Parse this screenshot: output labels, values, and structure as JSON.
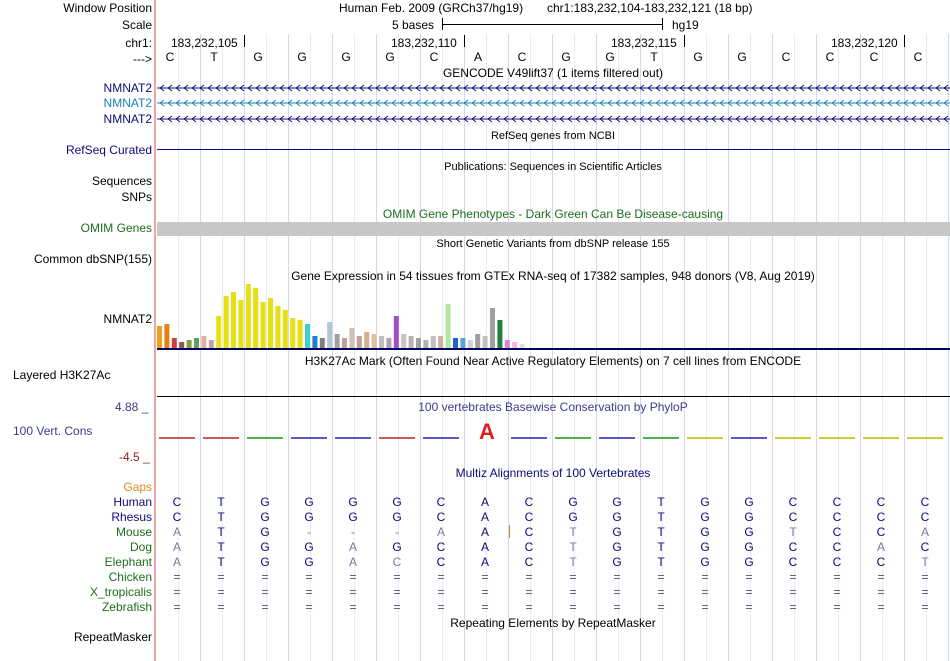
{
  "header": {
    "window_position_label": "Window Position",
    "scale_label": "Scale",
    "chrom_label": "chr1:",
    "strand_label": "--->",
    "assembly_text": "Human Feb. 2009 (GRCh37/hg19)",
    "position_text": "chr1:183,232,104-183,232,121 (18 bp)",
    "scale_text": "5 bases",
    "db_text": "hg19",
    "coords": [
      "183,232,105",
      "183,232,110",
      "183,232,115",
      "183,232,120"
    ],
    "bases": [
      "C",
      "T",
      "G",
      "G",
      "G",
      "G",
      "C",
      "A",
      "C",
      "G",
      "G",
      "T",
      "G",
      "G",
      "C",
      "C",
      "C",
      "C"
    ]
  },
  "gencode": {
    "title": "GENCODE V49lift37 (1 items filtered out)",
    "labels": [
      "NMNAT2",
      "NMNAT2",
      "NMNAT2"
    ],
    "colors": [
      "#0c0c78",
      "#1a82b4",
      "#0c0c78"
    ]
  },
  "refseq": {
    "title": "RefSeq genes from NCBI",
    "label": "RefSeq Curated",
    "color": "#0c0c78"
  },
  "publications": {
    "title": "Publications: Sequences in Scientific Articles",
    "label": "Sequences"
  },
  "snps": {
    "label": "SNPs"
  },
  "omim": {
    "title": "OMIM Gene Phenotypes - Dark Green Can Be Disease-causing",
    "label": "OMIM Genes",
    "color": "#1e6e1e"
  },
  "dbsnp": {
    "title": "Short Genetic Variants from dbSNP release 155",
    "label": "Common dbSNP(155)"
  },
  "gtex": {
    "title": "Gene Expression in 54 tissues from GTEx RNA-seq of 17382 samples, 948 donors (V8, Aug 2019)",
    "label": "NMNAT2"
  },
  "h3k27ac": {
    "title": "H3K27Ac Mark (Often Found Near Active Regulatory Elements) on 7 cell lines from ENCODE",
    "label": "Layered H3K27Ac"
  },
  "cons": {
    "title": "100 vertebrates Basewise Conservation by PhyloP",
    "label": "100 Vert. Cons",
    "ymax": "4.88 _",
    "ymin": "-4.5 _",
    "color": "#3c3c8c"
  },
  "multiz": {
    "title": "Multiz Alignments of 100 Vertebrates",
    "gaps_label": "Gaps",
    "species": [
      {
        "name": "Human",
        "color": "#0c0c78",
        "bases": [
          "C",
          "T",
          "G",
          "G",
          "G",
          "G",
          "C",
          "A",
          "C",
          "G",
          "G",
          "T",
          "G",
          "G",
          "C",
          "C",
          "C",
          "C"
        ]
      },
      {
        "name": "Rhesus",
        "color": "#0c0c78",
        "bases": [
          "C",
          "T",
          "G",
          "G",
          "G",
          "G",
          "C",
          "A",
          "C",
          "G",
          "G",
          "T",
          "G",
          "G",
          "C",
          "C",
          "C",
          "C"
        ]
      },
      {
        "name": "Mouse",
        "color": "#1e6e1e",
        "bases": [
          "A",
          "T",
          "G",
          "-",
          "-",
          "-",
          "A",
          "A",
          "C",
          "T",
          "G",
          "T",
          "G",
          "G",
          "T",
          "C",
          "C",
          "A"
        ]
      },
      {
        "name": "Dog",
        "color": "#1e6e1e",
        "bases": [
          "A",
          "T",
          "G",
          "G",
          "A",
          "G",
          "C",
          "A",
          "C",
          "T",
          "G",
          "T",
          "G",
          "G",
          "C",
          "C",
          "A",
          "C"
        ]
      },
      {
        "name": "Elephant",
        "color": "#1e6e1e",
        "bases": [
          "A",
          "T",
          "G",
          "G",
          "A",
          "C",
          "C",
          "A",
          "C",
          "T",
          "G",
          "T",
          "G",
          "G",
          "C",
          "C",
          "C",
          "T"
        ]
      },
      {
        "name": "Chicken",
        "color": "#1e6e1e",
        "bases": [
          "=",
          "=",
          "=",
          "=",
          "=",
          "=",
          "=",
          "=",
          "=",
          "=",
          "=",
          "=",
          "=",
          "=",
          "=",
          "=",
          "=",
          "="
        ]
      },
      {
        "name": "X_tropicalis",
        "color": "#1e6e1e",
        "bases": [
          "=",
          "=",
          "=",
          "=",
          "=",
          "=",
          "=",
          "=",
          "=",
          "=",
          "=",
          "=",
          "=",
          "=",
          "=",
          "=",
          "=",
          "="
        ]
      },
      {
        "name": "Zebrafish",
        "color": "#1e6e1e",
        "bases": [
          "=",
          "=",
          "=",
          "=",
          "=",
          "=",
          "=",
          "=",
          "=",
          "=",
          "=",
          "=",
          "=",
          "=",
          "=",
          "=",
          "=",
          "="
        ]
      }
    ]
  },
  "repeatmasker": {
    "title": "Repeating Elements by RepeatMasker",
    "label": "RepeatMasker"
  }
}
